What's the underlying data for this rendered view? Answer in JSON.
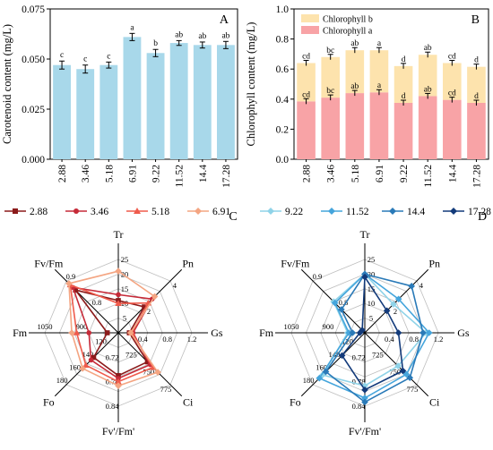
{
  "chart_data": [
    {
      "id": "A",
      "panel_label": "A",
      "type": "bar",
      "title": "",
      "ylabel": "Carotenoid content (mg/L)",
      "ylim": [
        0,
        0.075
      ],
      "yticks": [
        "0.000",
        "0.025",
        "0.050",
        "0.075"
      ],
      "categories": [
        "2.88",
        "3.46",
        "5.18",
        "6.91",
        "9.22",
        "11.52",
        "14.4",
        "17.28"
      ],
      "values": [
        0.047,
        0.045,
        0.047,
        0.061,
        0.053,
        0.058,
        0.057,
        0.057
      ],
      "errors": [
        0.002,
        0.002,
        0.0015,
        0.0018,
        0.0018,
        0.0012,
        0.0015,
        0.0018
      ],
      "letters": [
        "c",
        "c",
        "c",
        "a",
        "b",
        "ab",
        "ab",
        "ab"
      ],
      "color": "#a8d8ea"
    },
    {
      "id": "B",
      "panel_label": "B",
      "type": "bar",
      "stacked": true,
      "title": "",
      "ylabel": "Chlorophyll content (mg/L)",
      "ylim": [
        0,
        1.0
      ],
      "yticks": [
        "0.0",
        "0.2",
        "0.4",
        "0.6",
        "0.8",
        "1.0"
      ],
      "categories": [
        "2.88",
        "3.46",
        "5.18",
        "6.91",
        "9.22",
        "11.52",
        "14.4",
        "17.28"
      ],
      "legend_position": "top-left",
      "series": [
        {
          "name": "Chlorophyll b",
          "color": "#fde3ad",
          "values": [
            0.255,
            0.27,
            0.285,
            0.28,
            0.245,
            0.275,
            0.245,
            0.24
          ],
          "letters": [
            "cd",
            "bc",
            "ab",
            "a",
            "d",
            "ab",
            "cd",
            "d"
          ]
        },
        {
          "name": "Chlorophyll a",
          "color": "#f8a3a6",
          "values": [
            0.385,
            0.41,
            0.44,
            0.445,
            0.375,
            0.42,
            0.395,
            0.375
          ],
          "letters": [
            "cd",
            "bc",
            "ab",
            "a",
            "d",
            "ab",
            "cd",
            "d"
          ]
        }
      ]
    },
    {
      "id": "C",
      "panel_label": "C",
      "type": "radar",
      "axes": [
        "Tr",
        "Pn",
        "Gs",
        "Ci",
        "Fv'/Fm'",
        "Fo",
        "Fm",
        "Fv/Fm"
      ],
      "axis_ranges": [
        [
          0,
          25
        ],
        [
          0,
          4
        ],
        [
          0,
          1.2
        ],
        [
          700,
          775
        ],
        [
          0.66,
          0.84
        ],
        [
          100,
          180
        ],
        [
          750,
          1050
        ],
        [
          0.7,
          0.9
        ]
      ],
      "ticks": [
        [
          "0",
          "5",
          "10",
          "15",
          "20",
          "25"
        ],
        [
          "0",
          "2",
          "4"
        ],
        [
          "0.4",
          "0.8",
          "1.2"
        ],
        [
          "725",
          "750",
          "775"
        ],
        [
          "0.66",
          "0.72",
          "0.78",
          "0.84"
        ],
        [
          "120",
          "140",
          "160",
          "180"
        ],
        [
          "750",
          "900",
          "1050"
        ],
        [
          "0.8",
          "0.9"
        ]
      ],
      "series": [
        {
          "name": "2.88",
          "color": "#8b1a1a",
          "marker": "square",
          "values": [
            11,
            2.0,
            0.18,
            742,
            0.765,
            138,
            795,
            0.865
          ]
        },
        {
          "name": "3.46",
          "color": "#c62a38",
          "marker": "circle",
          "values": [
            13,
            2.6,
            0.24,
            746,
            0.772,
            142,
            870,
            0.875
          ]
        },
        {
          "name": "5.18",
          "color": "#ef5b4c",
          "marker": "triangle",
          "values": [
            10,
            2.3,
            0.22,
            750,
            0.78,
            150,
            920,
            0.885
          ]
        },
        {
          "name": "6.91",
          "color": "#f4a582",
          "marker": "diamond",
          "values": [
            21,
            2.8,
            0.2,
            757,
            0.79,
            155,
            940,
            0.89
          ]
        }
      ]
    },
    {
      "id": "D",
      "panel_label": "D",
      "type": "radar",
      "axes": [
        "Tr",
        "Pn",
        "Gs",
        "Ci",
        "Fv'/Fm'",
        "Fo",
        "Fm",
        "Fv/Fm"
      ],
      "axis_ranges": [
        [
          0,
          25
        ],
        [
          0,
          4
        ],
        [
          0,
          1.2
        ],
        [
          700,
          775
        ],
        [
          0.66,
          0.84
        ],
        [
          100,
          180
        ],
        [
          750,
          1050
        ],
        [
          0.7,
          0.9
        ]
      ],
      "ticks": [
        [
          "0",
          "5",
          "10",
          "15",
          "20",
          "25"
        ],
        [
          "0",
          "2",
          "4"
        ],
        [
          "0.4",
          "0.8",
          "1.2"
        ],
        [
          "725",
          "750",
          "775"
        ],
        [
          "0.66",
          "0.72",
          "0.78",
          "0.84"
        ],
        [
          "120",
          "140",
          "160",
          "180"
        ],
        [
          "750",
          "900",
          "1050"
        ],
        [
          "0.8",
          "0.9"
        ]
      ],
      "series": [
        {
          "name": "9.22",
          "color": "#8fd3e8",
          "marker": "diamond",
          "values": [
            20,
            2.2,
            1.0,
            748,
            0.79,
            165,
            820,
            0.82
          ]
        },
        {
          "name": "11.52",
          "color": "#45a5dc",
          "marker": "diamond",
          "values": [
            20,
            2.6,
            1.05,
            760,
            0.82,
            170,
            815,
            0.815
          ]
        },
        {
          "name": "14.4",
          "color": "#2a7ab8",
          "marker": "diamond",
          "values": [
            20,
            3.6,
            0.95,
            765,
            0.83,
            160,
            800,
            0.79
          ]
        },
        {
          "name": "17.28",
          "color": "#123a7a",
          "marker": "diamond",
          "values": [
            19,
            1.7,
            0.55,
            755,
            0.8,
            135,
            770,
            0.71
          ]
        }
      ]
    }
  ]
}
